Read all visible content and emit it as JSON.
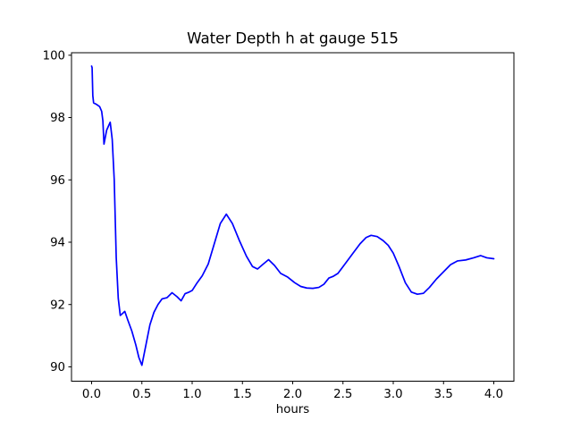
{
  "figure": {
    "background": "#ffffff"
  },
  "chart_data": {
    "type": "line",
    "title": "Water Depth h at gauge 515",
    "xlabel": "hours",
    "ylabel": "",
    "xlim": [
      -0.2,
      4.2
    ],
    "ylim": [
      89.54,
      100.08
    ],
    "xticks": [
      0.0,
      0.5,
      1.0,
      1.5,
      2.0,
      2.5,
      3.0,
      3.5,
      4.0
    ],
    "xtick_labels": [
      "0.0",
      "0.5",
      "1.0",
      "1.5",
      "2.0",
      "2.5",
      "3.0",
      "3.5",
      "4.0"
    ],
    "yticks": [
      90,
      92,
      94,
      96,
      98,
      100
    ],
    "ytick_labels": [
      "90",
      "92",
      "94",
      "96",
      "98",
      "100"
    ],
    "grid": false,
    "legend_position": "none",
    "frame_color": "#000000",
    "text_color": "#000000",
    "series": [
      {
        "name": "water-depth-h",
        "color": "#0000ff",
        "x": [
          0.0,
          0.005,
          0.012,
          0.02,
          0.05,
          0.08,
          0.1,
          0.112,
          0.123,
          0.15,
          0.185,
          0.205,
          0.225,
          0.245,
          0.265,
          0.285,
          0.31,
          0.33,
          0.36,
          0.4,
          0.44,
          0.47,
          0.5,
          0.54,
          0.58,
          0.62,
          0.66,
          0.7,
          0.75,
          0.8,
          0.85,
          0.89,
          0.93,
          0.97,
          1.0,
          1.05,
          1.1,
          1.16,
          1.22,
          1.28,
          1.34,
          1.4,
          1.47,
          1.54,
          1.6,
          1.65,
          1.7,
          1.76,
          1.82,
          1.88,
          1.95,
          2.02,
          2.08,
          2.14,
          2.2,
          2.26,
          2.31,
          2.36,
          2.4,
          2.45,
          2.52,
          2.6,
          2.67,
          2.73,
          2.78,
          2.84,
          2.9,
          2.95,
          3.0,
          3.06,
          3.12,
          3.18,
          3.24,
          3.3,
          3.36,
          3.43,
          3.5,
          3.57,
          3.64,
          3.72,
          3.8,
          3.87,
          3.93,
          4.0
        ],
        "y": [
          99.65,
          99.6,
          98.7,
          98.47,
          98.42,
          98.35,
          98.2,
          97.9,
          97.15,
          97.6,
          97.85,
          97.3,
          96.0,
          93.5,
          92.2,
          91.65,
          91.72,
          91.78,
          91.5,
          91.15,
          90.7,
          90.3,
          90.05,
          90.7,
          91.35,
          91.75,
          92.0,
          92.18,
          92.22,
          92.38,
          92.25,
          92.12,
          92.35,
          92.4,
          92.45,
          92.7,
          92.92,
          93.3,
          93.95,
          94.6,
          94.9,
          94.6,
          94.05,
          93.55,
          93.22,
          93.14,
          93.28,
          93.44,
          93.25,
          93.0,
          92.88,
          92.7,
          92.58,
          92.53,
          92.52,
          92.55,
          92.65,
          92.85,
          92.9,
          93.0,
          93.3,
          93.65,
          93.95,
          94.15,
          94.22,
          94.18,
          94.05,
          93.9,
          93.65,
          93.2,
          92.7,
          92.4,
          92.33,
          92.36,
          92.55,
          92.82,
          93.05,
          93.28,
          93.4,
          93.43,
          93.5,
          93.57,
          93.5,
          93.47
        ]
      }
    ]
  }
}
